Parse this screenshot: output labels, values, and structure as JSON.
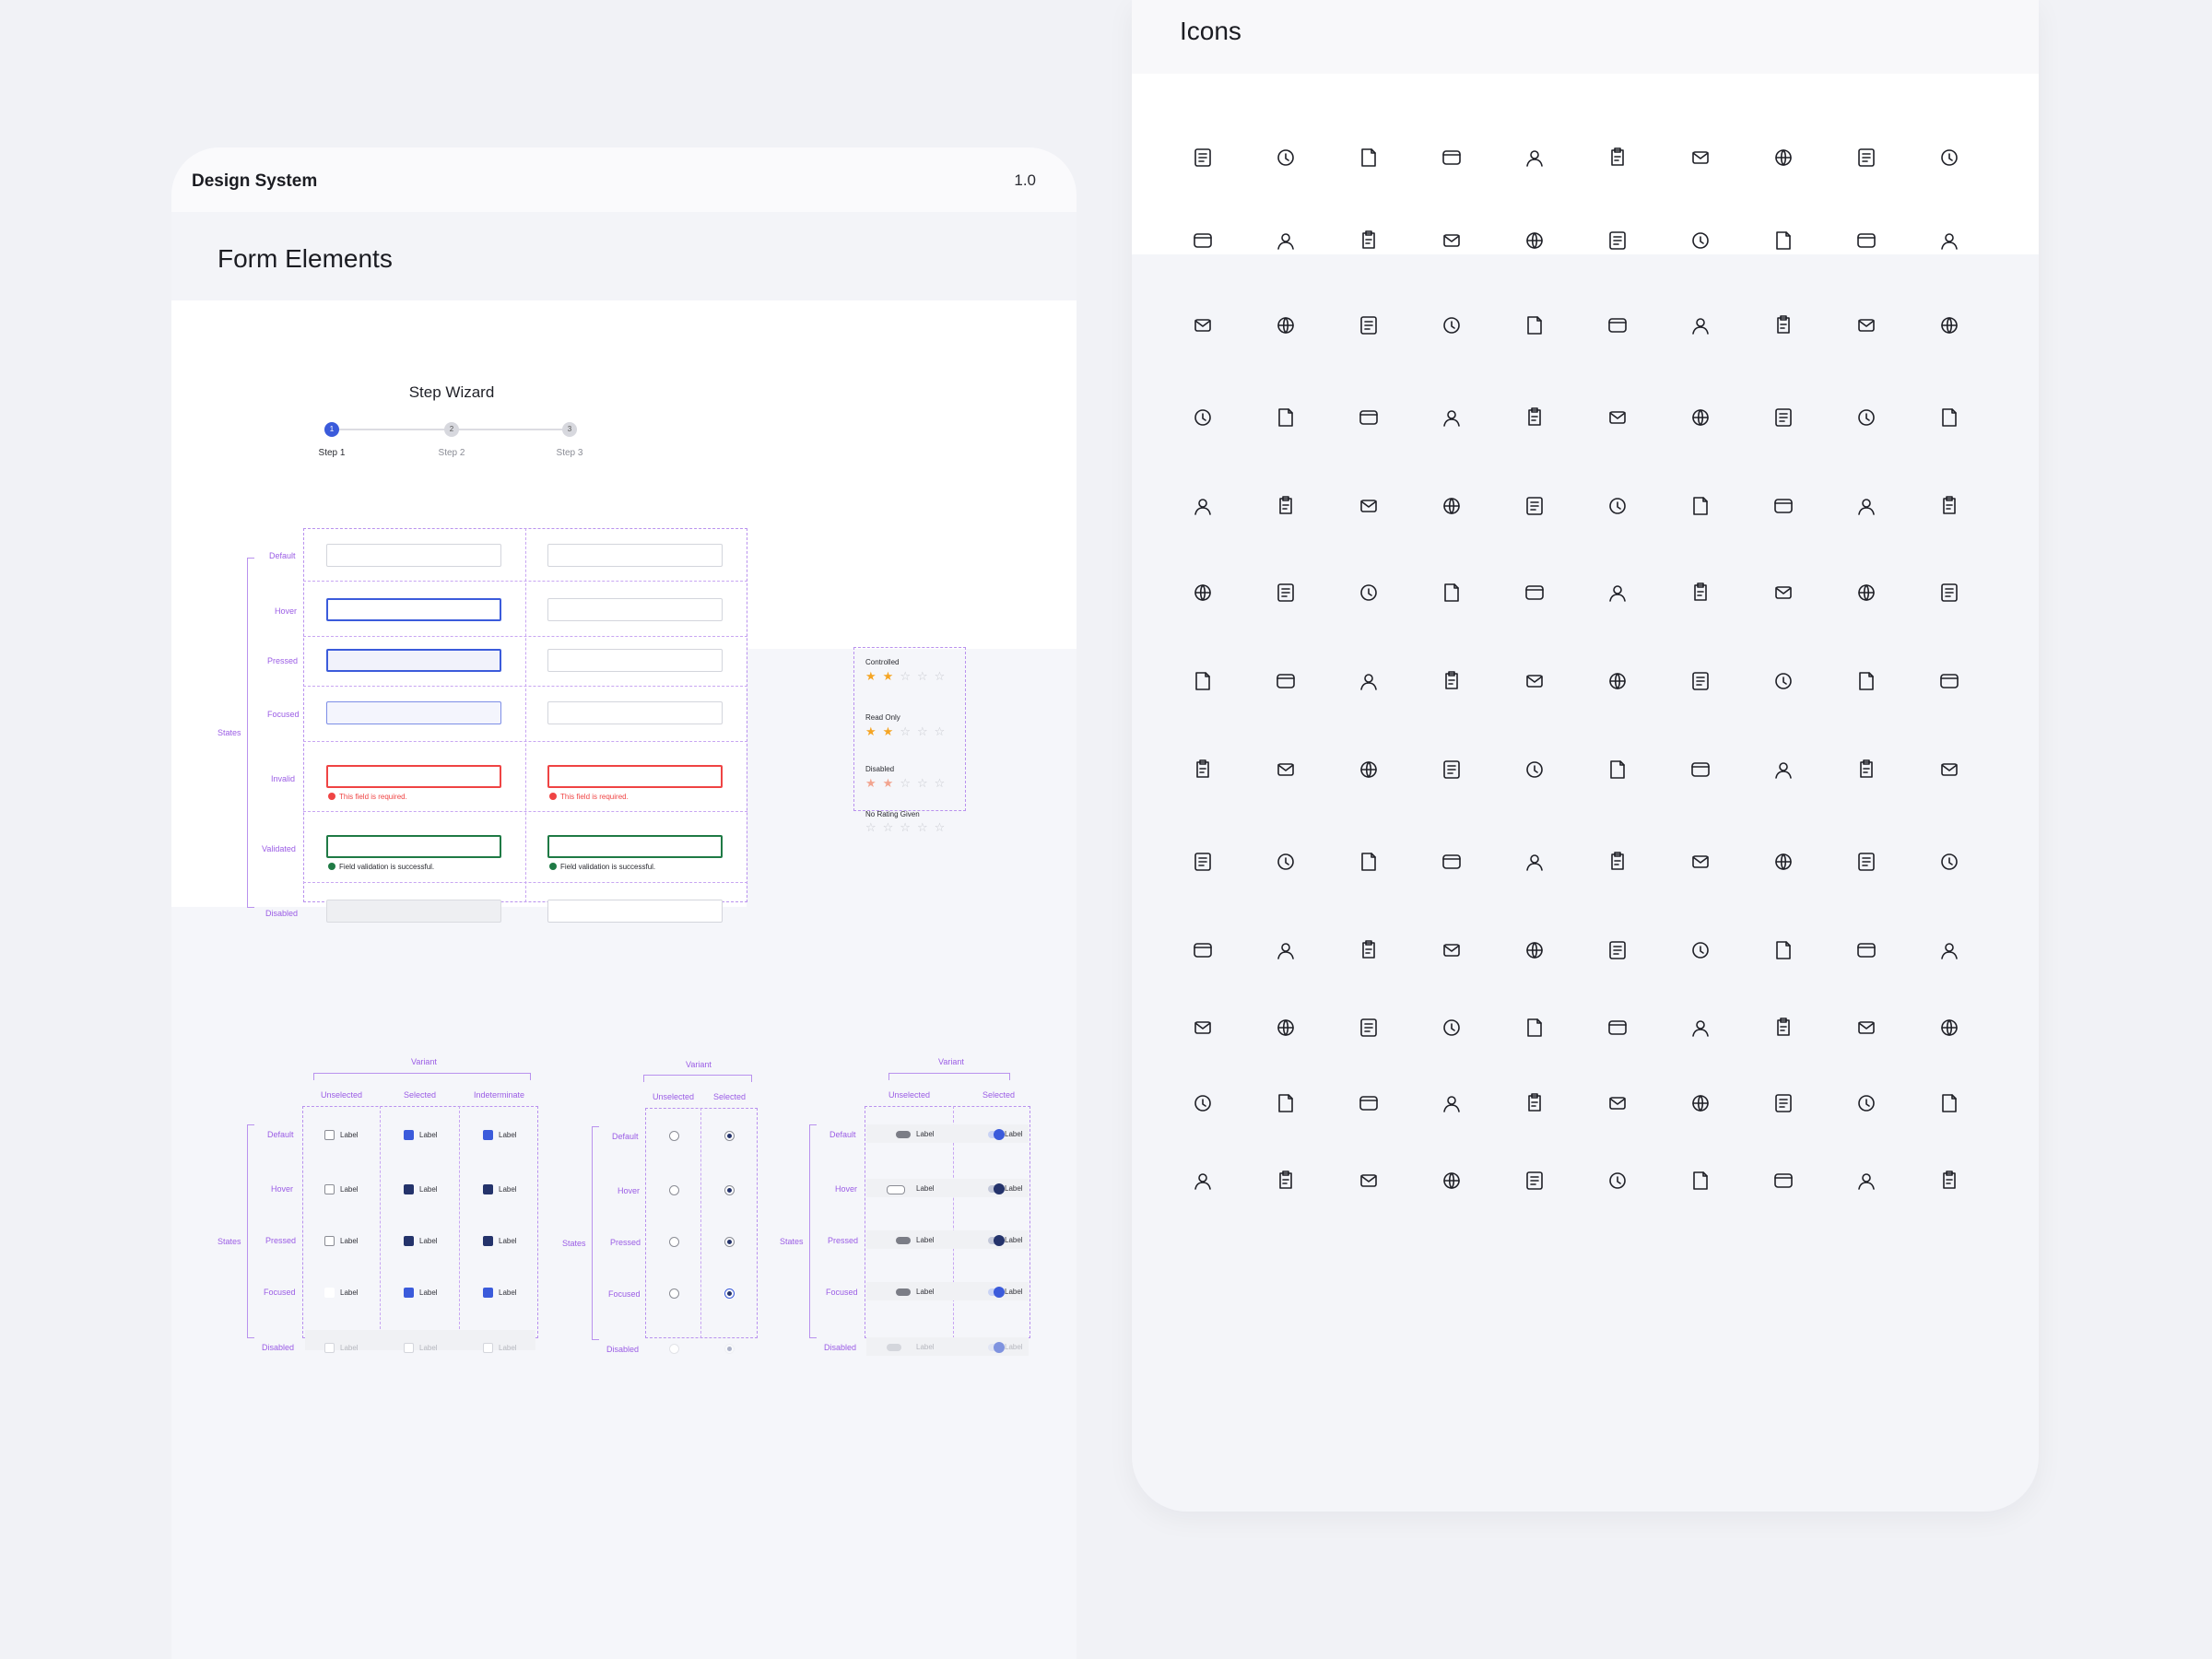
{
  "left": {
    "title": "Design System",
    "version": "1.0",
    "section_title": "Form Elements"
  },
  "wizard": {
    "title": "Step Wizard",
    "steps": [
      {
        "number": "1",
        "label": "Step 1",
        "active": true
      },
      {
        "number": "2",
        "label": "Step 2",
        "active": false
      },
      {
        "number": "3",
        "label": "Step 3",
        "active": false
      }
    ]
  },
  "inputs": {
    "states_label": "States",
    "states": [
      "Default",
      "Hover",
      "Pressed",
      "Focused",
      "Invalid",
      "Validated",
      "Disabled"
    ],
    "invalid_message": "This field is required.",
    "valid_message": "Field validation is successful."
  },
  "rating": {
    "groups": [
      {
        "label": "Controlled",
        "value": 2
      },
      {
        "label": "Read Only",
        "value": 2
      },
      {
        "label": "Disabled",
        "value": 2
      },
      {
        "label": "No Rating Given",
        "value": 0
      }
    ],
    "max": 5
  },
  "checkbox": {
    "variant_label": "Variant",
    "states_label": "States",
    "columns": [
      "Unselected",
      "Selected",
      "Indeterminate"
    ],
    "states": [
      "Default",
      "Hover",
      "Pressed",
      "Focused",
      "Disabled"
    ],
    "item_label": "Label"
  },
  "radio": {
    "variant_label": "Variant",
    "states_label": "States",
    "columns": [
      "Unselected",
      "Selected"
    ],
    "states": [
      "Default",
      "Hover",
      "Pressed",
      "Focused",
      "Disabled"
    ]
  },
  "toggle": {
    "variant_label": "Variant",
    "states_label": "States",
    "columns": [
      "Unselected",
      "Selected"
    ],
    "states": [
      "Default",
      "Hover",
      "Pressed",
      "Focused",
      "Disabled"
    ],
    "item_label": "Label"
  },
  "icons_panel": {
    "title": "Icons",
    "rows": [
      [
        "user-circle-icon",
        "document-settings-icon",
        "document-chart-icon",
        "pin-icon",
        "folder-icon",
        "clipboard-text-icon",
        "clipboard-user-icon",
        "notepad-icon",
        "contact-card-icon",
        "clipboard-chart-icon"
      ],
      [
        "globe-icon",
        "paperclip-icon",
        "chat-copy-icon",
        "pen-icon",
        "target-icon",
        "notes-edit-icon",
        "mail-open-icon",
        "document-edit-icon",
        "document-arrow-icon",
        "printer-icon"
      ],
      [
        "checklist-icon",
        "address-book-icon",
        "notepad-edit-icon",
        "document-search-icon",
        "clipboard-list-icon",
        "mail-icon",
        "calendar-list-icon",
        "toggle-settings-icon",
        "compass-icon",
        "bar-chart-icon"
      ],
      [
        "card-icon",
        "info-icon",
        "calendar-icon",
        "shield-check-icon",
        "user-icon",
        "trend-chart-icon",
        "wallet-icon",
        "chat-dots-icon",
        "folder-open-icon",
        "shopping-bag-icon"
      ],
      [
        "edit-box-icon",
        "trash-icon",
        "wallet-card-icon",
        "save-box-icon",
        "music-icon",
        "share-icon",
        "smile-icon",
        "person-icon",
        "document-zoom-icon",
        "send-icon"
      ],
      [
        "bookmark-icon",
        "note-edit-icon",
        "location-pin-icon",
        "camera-icon",
        "video-icon",
        "user-add-icon",
        "message-square-icon",
        "thumbs-up-icon",
        "sliders-icon",
        "alarm-icon"
      ],
      [
        "search-icon",
        "login-icon",
        "logout-icon",
        "copy-document-icon",
        "chat-bubble-icon",
        "thumbs-down-icon",
        "star-icon",
        "envelope-icon",
        "bell-icon",
        "forward-icon"
      ],
      [
        "refresh-at-icon",
        "building-icon",
        "user-star-icon",
        "user-edit-icon",
        "user-check-icon",
        "list-icon",
        "grid-icon",
        "hierarchy-icon",
        "history-icon",
        "mail-send-icon"
      ],
      [
        "download-icon",
        "download-line-icon",
        "document-lines-icon",
        "file-add-icon",
        "document-check-icon",
        "floppy-icon",
        "floppy-outline-icon",
        "apps-add-icon",
        "web-icon",
        "settings-icon"
      ],
      [
        "doc-download-icon",
        "doc-upload-icon",
        "doc-user-icon",
        "doc-lock-icon",
        "doc-remove-icon",
        "doc-clock-icon",
        "image-file-icon",
        "file-money-icon",
        "sticky-note-icon",
        "note-pencil-icon"
      ],
      [
        "notes-icon",
        "printer-doc-icon",
        "file-refresh-icon",
        "folder-star-icon",
        "text-file-icon",
        "book-icon",
        "folder-check-icon",
        "file-book-icon",
        "file-clock-icon",
        "scan-icon"
      ],
      [
        "copy-icon",
        "upload-box-icon",
        "file-plus-icon",
        "file-stack-icon",
        "file-lock-icon",
        "tablet-icon",
        "calendar-settings-icon",
        "lines-doc-icon",
        "tag-doc-icon",
        "briefcase-doc-icon"
      ],
      [
        "badge-icon",
        "folders-icon",
        "duplicate-icon",
        "widgets-icon",
        "add-circle-icon",
        "add-doc-icon",
        "inbox-icon",
        "table-icon",
        "search-doc-icon",
        "list-clipboard-icon"
      ]
    ]
  },
  "colors": {
    "primary": "#3b5bdb",
    "primary_dark": "#24336b",
    "danger": "#ef4444",
    "success": "#1f7a45",
    "annotation": "#9b5de5",
    "star": "#f5a524"
  }
}
